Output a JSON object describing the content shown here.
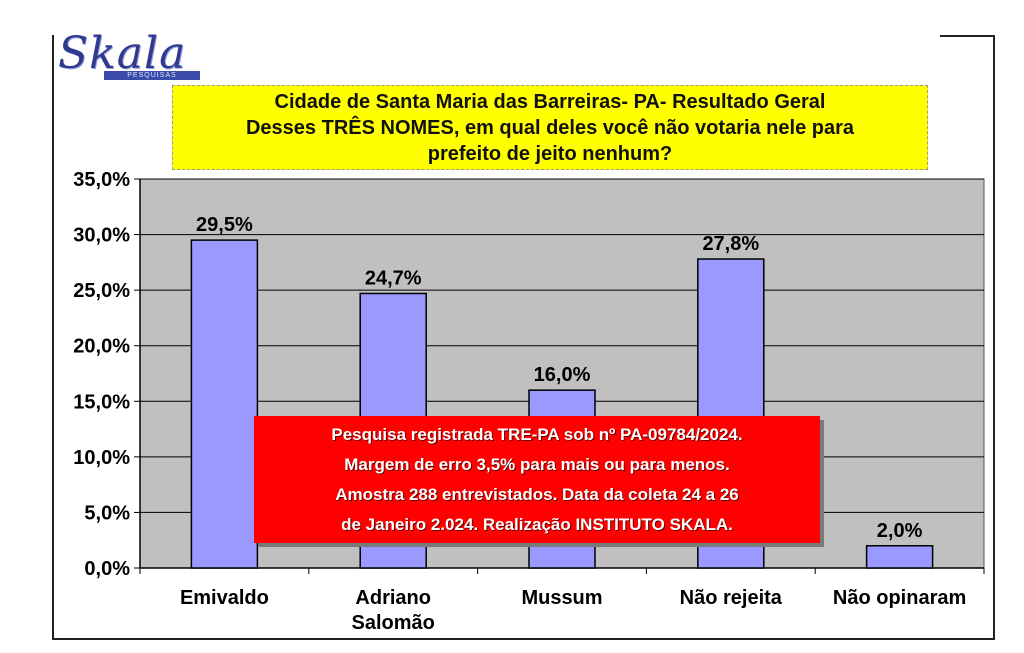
{
  "logo": {
    "text": "Skala",
    "subtitle": "PESQUISAS"
  },
  "title": {
    "line1": "Cidade de Santa Maria das Barreiras- PA- Resultado Geral",
    "line2": "Desses TRÊS  NOMES, em qual deles você não votaria nele para",
    "line3": "prefeito de jeito nenhum?"
  },
  "notice": {
    "line1": "Pesquisa registrada TRE-PA sob nº PA-09784/2024.",
    "line2": "Margem de erro 3,5% para mais ou para menos.",
    "line3": "Amostra 288 entrevistados. Data da coleta 24 a 26",
    "line4": "de Janeiro 2.024. Realização INSTITUTO SKALA."
  },
  "colors": {
    "bar": "#9999ff",
    "bar_border": "#000000",
    "plot_bg": "#c0c0c0",
    "title_bg": "#ffff00",
    "notice_bg": "#ff0000"
  },
  "chart_data": {
    "type": "bar",
    "categories": [
      "Emivaldo",
      "Adriano Salomão",
      "Mussum",
      "Não rejeita",
      "Não opinaram"
    ],
    "values": [
      29.5,
      24.7,
      16.0,
      27.8,
      2.0
    ],
    "value_labels": [
      "29,5%",
      "24,7%",
      "16,0%",
      "27,8%",
      "2,0%"
    ],
    "yticks": [
      0,
      5,
      10,
      15,
      20,
      25,
      30,
      35
    ],
    "ytick_labels": [
      "0,0%",
      "5,0%",
      "10,0%",
      "15,0%",
      "20,0%",
      "25,0%",
      "30,0%",
      "35,0%"
    ],
    "ylim": [
      0,
      35
    ],
    "grid": true,
    "legend": false
  }
}
